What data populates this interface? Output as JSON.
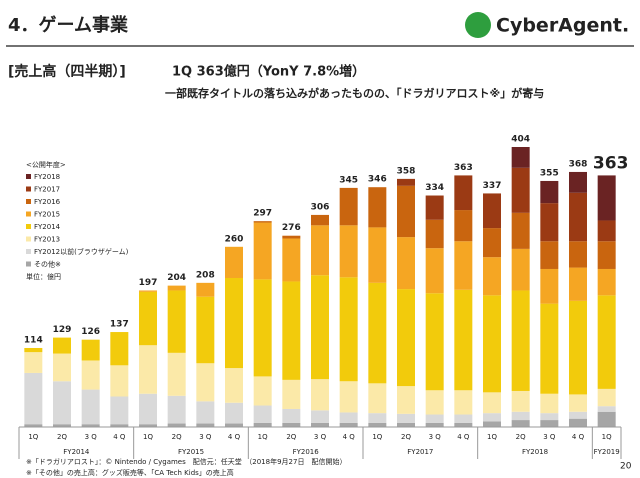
{
  "header": {
    "title": "4．ゲーム事業",
    "logo": "CyberAgent."
  },
  "chart_data": {
    "type": "stacked_bar",
    "section": "[売上高（四半期）]",
    "headline": "1Q 363億円（YonY 7.8%増）",
    "subtitle": "一部既存タイトルの落ち込みがあったものの、「ドラガリアロスト※」が寄与",
    "legend_title": "<公開年度>",
    "unit": "単位：億円",
    "categories": [
      "1Q",
      "2Q",
      "3 Q",
      "4 Q",
      "1Q",
      "2Q",
      "3 Q",
      "4 Q",
      "1Q",
      "2Q",
      "3 Q",
      "4 Q",
      "1Q",
      "2Q",
      "3 Q",
      "4 Q",
      "1Q",
      "2Q",
      "3 Q",
      "4 Q",
      "1Q"
    ],
    "fiscal_years": [
      "FY2014",
      "FY2014",
      "FY2014",
      "FY2014",
      "FY2015",
      "FY2015",
      "FY2015",
      "FY2015",
      "FY2016",
      "FY2016",
      "FY2016",
      "FY2016",
      "FY2017",
      "FY2017",
      "FY2017",
      "FY2017",
      "FY2018",
      "FY2018",
      "FY2018",
      "FY2018",
      "FY2019"
    ],
    "totals": [
      114,
      129,
      126,
      137,
      197,
      204,
      208,
      260,
      297,
      276,
      306,
      345,
      346,
      358,
      334,
      363,
      337,
      404,
      355,
      368,
      363
    ],
    "series": [
      {
        "name": "その他※",
        "color": "#a6a6a6",
        "values": [
          4,
          4,
          4,
          4,
          4,
          5,
          5,
          5,
          6,
          6,
          6,
          6,
          6,
          6,
          6,
          6,
          8,
          10,
          10,
          12,
          22
        ]
      },
      {
        "name": "FY2012以前(ブラウザゲーム)",
        "color": "#d9d9d9",
        "values": [
          74,
          62,
          50,
          40,
          44,
          40,
          32,
          30,
          25,
          20,
          18,
          15,
          14,
          13,
          12,
          12,
          12,
          12,
          10,
          10,
          8
        ]
      },
      {
        "name": "FY2013",
        "color": "#fbe9a8",
        "values": [
          30,
          40,
          42,
          45,
          70,
          62,
          55,
          50,
          42,
          42,
          45,
          45,
          43,
          40,
          35,
          35,
          30,
          30,
          28,
          25,
          25
        ]
      },
      {
        "name": "FY2014",
        "color": "#f2cb0c",
        "values": [
          6,
          23,
          30,
          48,
          77,
          90,
          96,
          130,
          140,
          142,
          150,
          150,
          145,
          140,
          140,
          145,
          140,
          145,
          130,
          135,
          135
        ]
      },
      {
        "name": "FY2015",
        "color": "#f5a623",
        "values": [
          0,
          0,
          0,
          0,
          2,
          7,
          20,
          45,
          82,
          62,
          72,
          75,
          80,
          75,
          65,
          70,
          55,
          60,
          50,
          48,
          38
        ]
      },
      {
        "name": "FY2016",
        "color": "#c9650f",
        "values": [
          0,
          0,
          0,
          0,
          0,
          0,
          0,
          0,
          2,
          4,
          15,
          54,
          58,
          74,
          41,
          45,
          42,
          52,
          40,
          38,
          40
        ]
      },
      {
        "name": "FY2017",
        "color": "#9b3a14",
        "values": [
          0,
          0,
          0,
          0,
          0,
          0,
          0,
          0,
          0,
          0,
          0,
          0,
          0,
          10,
          35,
          50,
          50,
          65,
          55,
          70,
          30
        ]
      },
      {
        "name": "FY2018",
        "color": "#6a2323",
        "values": [
          0,
          0,
          0,
          0,
          0,
          0,
          0,
          0,
          0,
          0,
          0,
          0,
          0,
          0,
          0,
          0,
          0,
          30,
          32,
          30,
          65
        ]
      }
    ]
  },
  "footer": {
    "notes": [
      "※「ドラガリアロスト」：© Nintendo / Cygames　配信元：任天堂　（2018年9月27日　配信開始）",
      "※「その他」の売上高：グッズ販売等、「CA Tech Kids」の売上高"
    ],
    "page": "20"
  }
}
